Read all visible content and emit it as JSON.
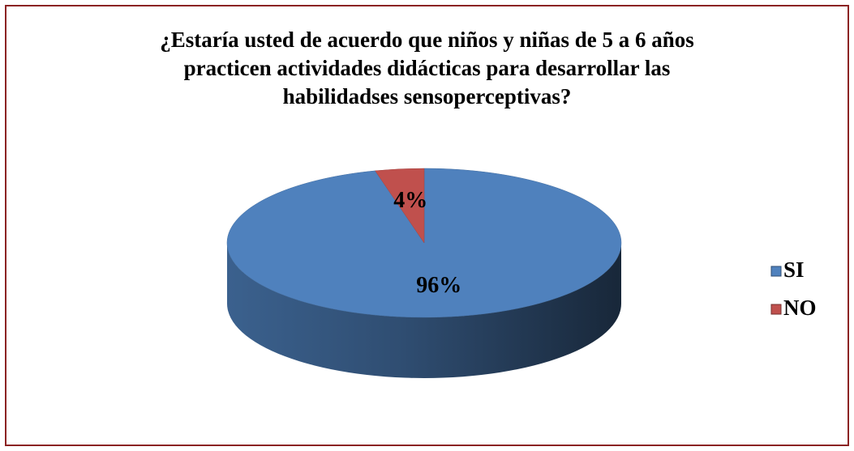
{
  "chart_data": {
    "type": "pie",
    "title": "¿Estaría usted de acuerdo que niños y niñas de 5 a 6 años\npracticen actividades didácticas para desarrollar las\nhabilidadses sensoperceptivas?",
    "categories": [
      "SI",
      "NO"
    ],
    "values": [
      96,
      4
    ],
    "value_labels": [
      "96%",
      "4%"
    ],
    "colors": [
      "#4f81bd",
      "#c0504d"
    ],
    "legend": "right"
  }
}
